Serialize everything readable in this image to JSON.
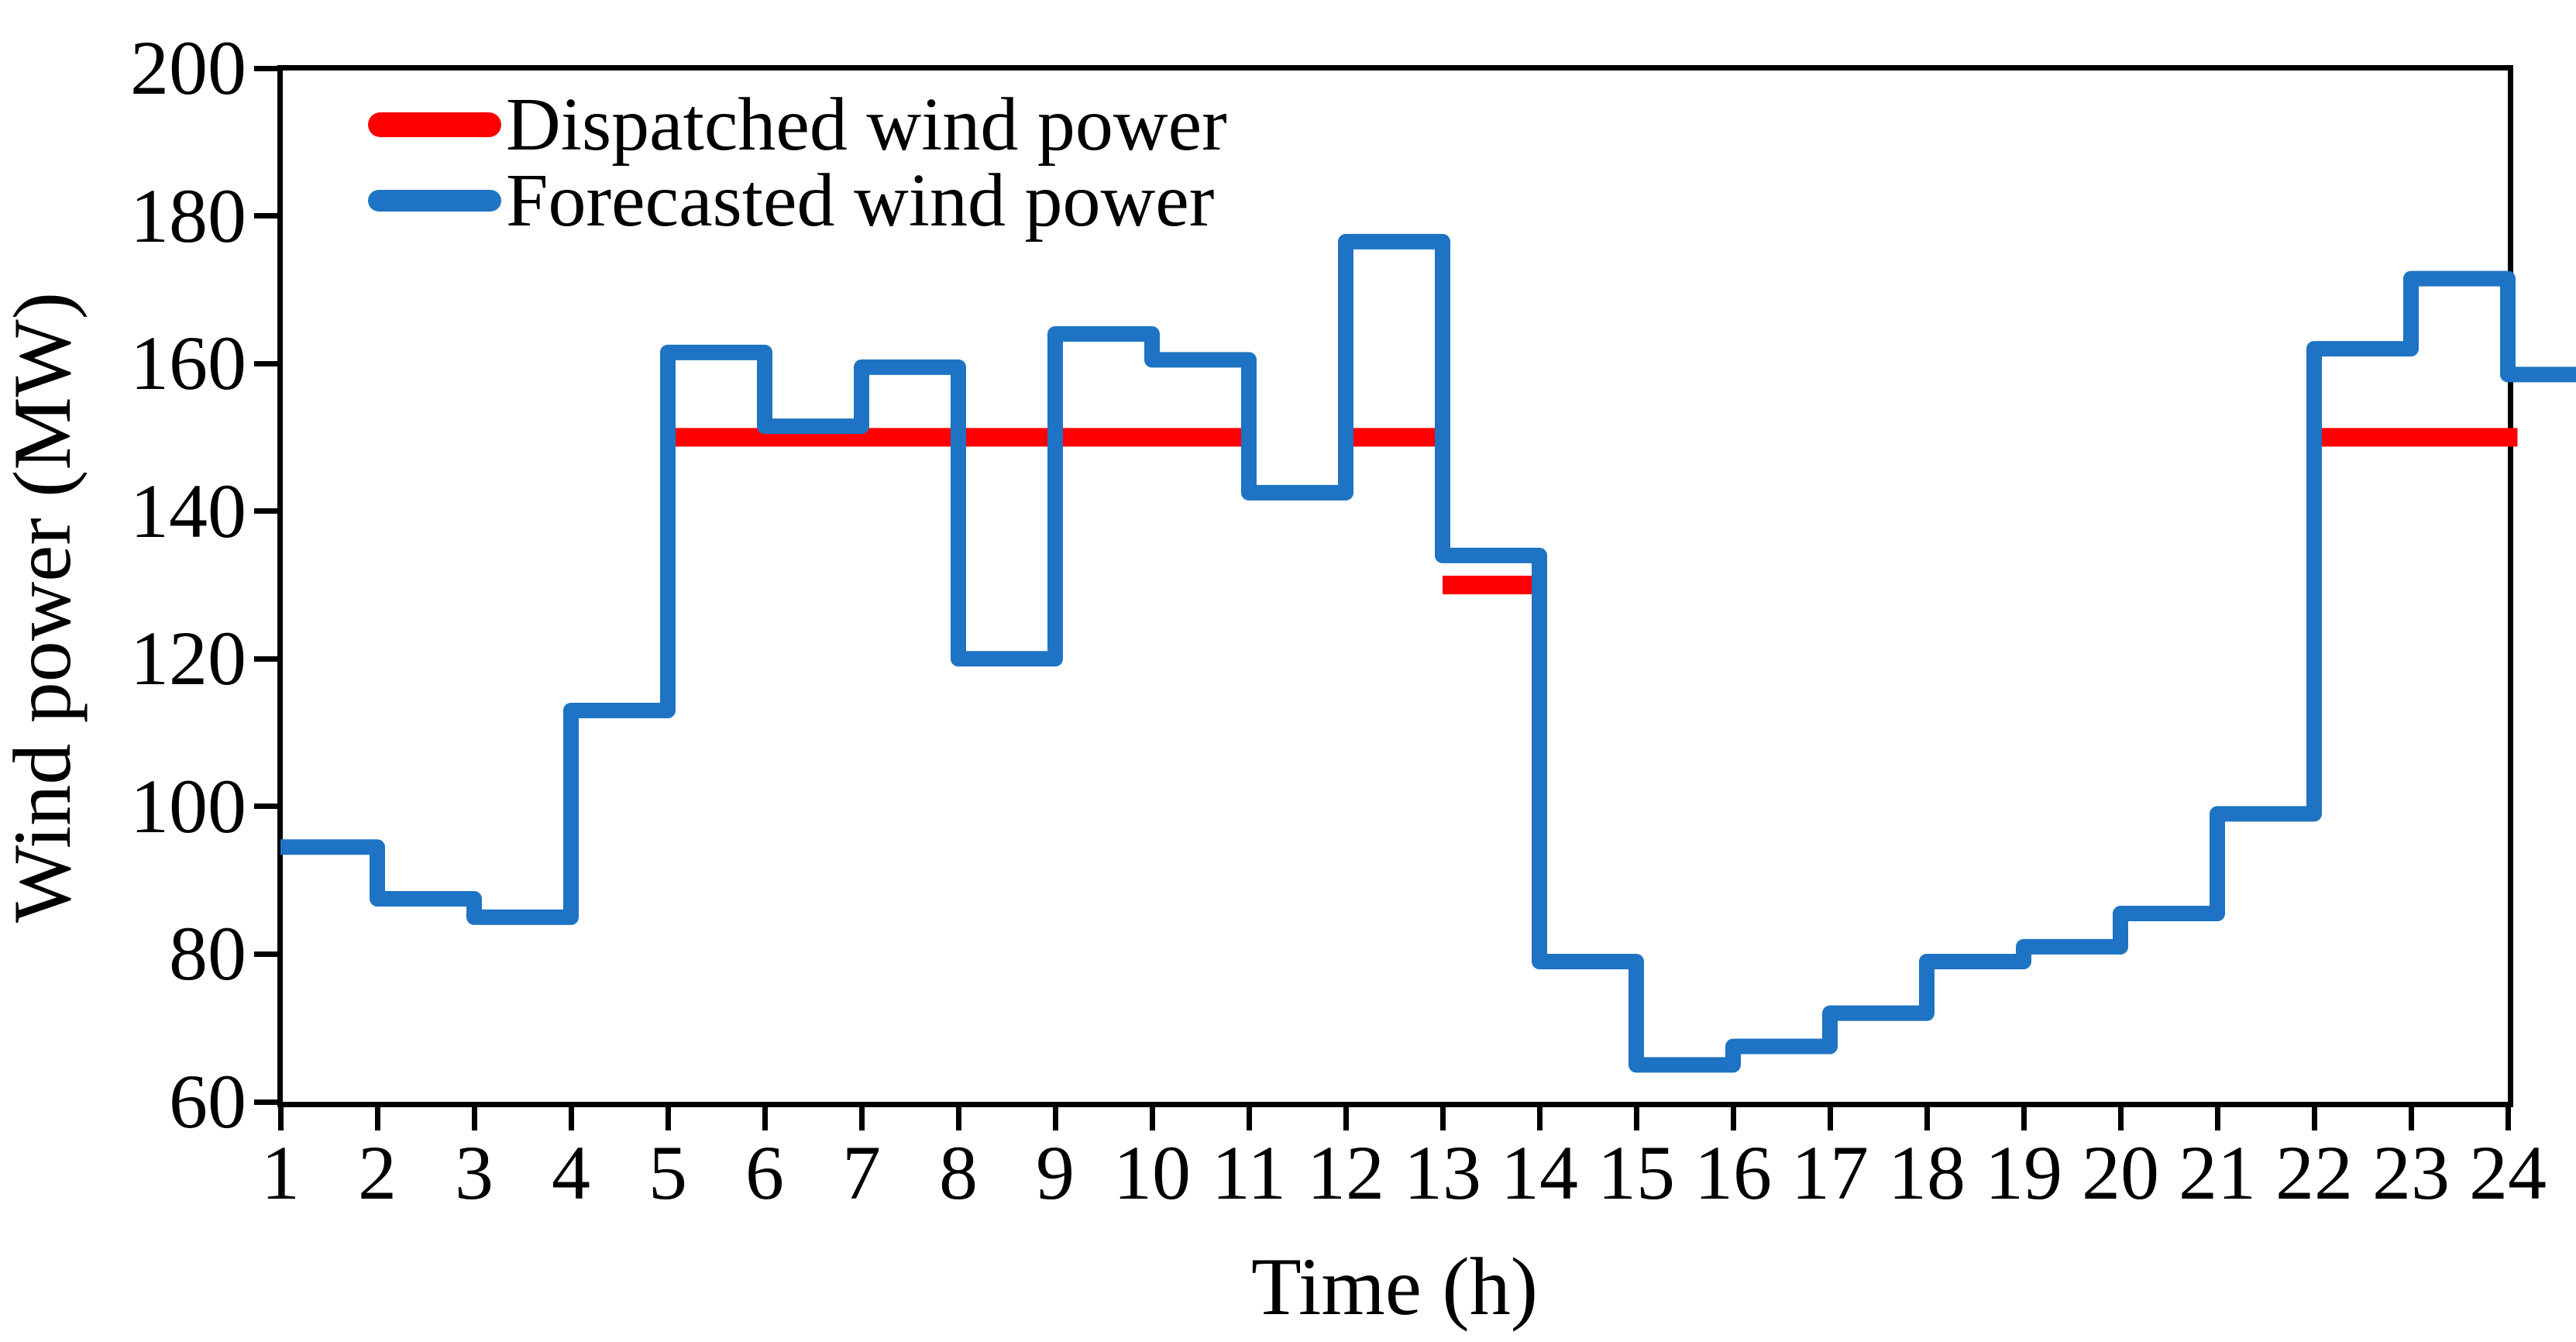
{
  "chart_data": {
    "type": "line",
    "subtype": "step",
    "title": "",
    "xlabel": "Time (h)",
    "ylabel": "Wind power (MW)",
    "xlim": [
      1,
      24
    ],
    "ylim": [
      60,
      200
    ],
    "x_ticks": [
      1,
      2,
      3,
      4,
      5,
      6,
      7,
      8,
      9,
      10,
      11,
      12,
      13,
      14,
      15,
      16,
      17,
      18,
      19,
      20,
      21,
      22,
      23,
      24
    ],
    "y_ticks": [
      60,
      80,
      100,
      120,
      140,
      160,
      180,
      200
    ],
    "grid": false,
    "legend_position": "upper-left",
    "x": [
      1,
      2,
      3,
      4,
      5,
      6,
      7,
      8,
      9,
      10,
      11,
      12,
      13,
      14,
      15,
      16,
      17,
      18,
      19,
      20,
      21,
      22,
      23,
      24
    ],
    "series": [
      {
        "name": "Dispatched wind power",
        "color": "#FF0000",
        "values": [
          94.5,
          87.5,
          85,
          113,
          150,
          150,
          150,
          150,
          150,
          150,
          142.5,
          150,
          130,
          79,
          65,
          67.5,
          72,
          79,
          81,
          85.5,
          99,
          150,
          150,
          150
        ]
      },
      {
        "name": "Forecasted wind power",
        "color": "#1E73C4",
        "values": [
          94.5,
          87.5,
          85,
          113,
          161.5,
          151.5,
          159.5,
          120,
          164,
          160.5,
          142.5,
          176.5,
          134,
          79,
          65,
          67.5,
          72,
          79,
          81,
          85.5,
          99,
          162,
          171.5,
          158.5
        ]
      }
    ],
    "dispatched_visible_segments": [
      {
        "from_hour": 5,
        "to_hour": 11,
        "value": 150
      },
      {
        "from_hour": 12,
        "to_hour": 13,
        "value": 150
      },
      {
        "from_hour": 13,
        "to_hour": 14,
        "value": 130
      },
      {
        "from_hour": 22,
        "to_hour": 24.1,
        "value": 150
      }
    ]
  },
  "legend": {
    "items": [
      {
        "label": "Dispatched wind power",
        "color": "#FF0000"
      },
      {
        "label": "Forecasted wind power",
        "color": "#1E73C4"
      }
    ]
  },
  "axes": {
    "x_label": "Time (h)",
    "y_label": "Wind power (MW)"
  },
  "colors": {
    "dispatched": "#FF0000",
    "forecasted": "#1E73C4",
    "axis": "#000000",
    "background": "#FFFFFF"
  }
}
